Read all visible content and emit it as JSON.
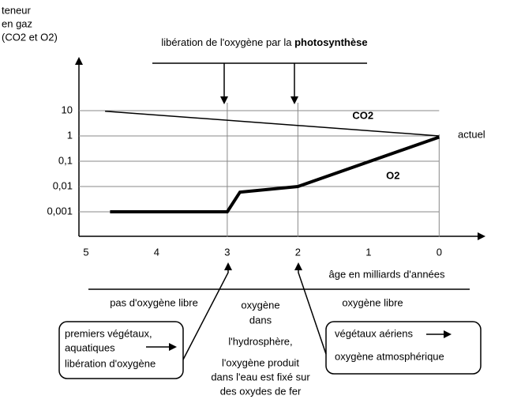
{
  "chart_data": {
    "type": "line",
    "ylabel": [
      "teneur",
      "en gaz",
      "(CO2 et O2)"
    ],
    "xlabel": "âge en milliards d'années",
    "title": [
      "libération de l'oxygène par la ",
      "photosynthèse"
    ],
    "right_label": "actuel",
    "log_y": true,
    "grid": true,
    "xlim": [
      5.1,
      -0.6
    ],
    "ylim": [
      0.0001,
      1000
    ],
    "xticks": [
      5,
      4,
      3,
      2,
      1,
      0
    ],
    "yticks": [
      10,
      1,
      {
        "value": 0.1,
        "label": "0,1"
      },
      {
        "value": 0.01,
        "label": "0,01"
      },
      {
        "value": 0.001,
        "label": "0,001"
      }
    ],
    "series": [
      {
        "name": "CO2",
        "color": "#000000",
        "width": 1.5,
        "x": [
          4.73,
          0
        ],
        "values": [
          9.5,
          1
        ]
      },
      {
        "name": "O2",
        "color": "#000000",
        "width": 4,
        "x": [
          4.66,
          3,
          2.82,
          2,
          0
        ],
        "values": [
          0.001,
          0.001,
          0.006,
          0.01,
          0.9
        ]
      }
    ],
    "periods": {
      "left": "pas d'oxygène libre",
      "middle": [
        "oxygène",
        "dans",
        "l'hydrosphère,",
        "l'oxygène produit",
        "dans l'eau est fixé sur",
        "des oxydes de fer"
      ],
      "right": "oxygène libre"
    },
    "boxes": {
      "left": [
        "premiers végétaux,",
        "aquatiques",
        "libération d'oxygène"
      ],
      "right": [
        "végétaux aériens",
        "oxygène atmosphérique"
      ]
    }
  }
}
